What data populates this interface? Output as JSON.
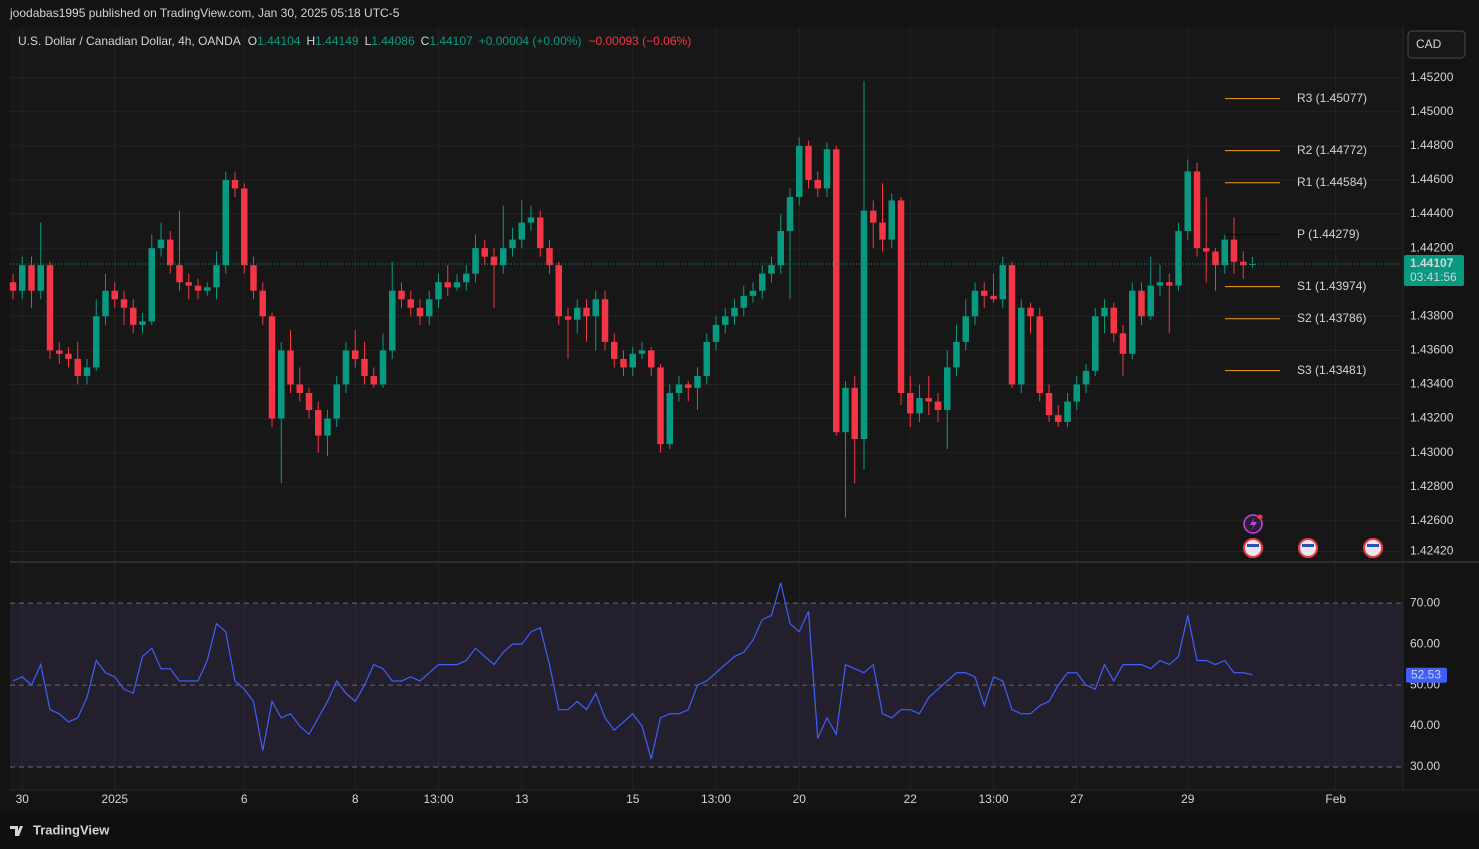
{
  "header": {
    "published": "joodabas1995 published on TradingView.com, Jan 30, 2025 05:18 UTC-5"
  },
  "footer": {
    "logo": "TradingView"
  },
  "chart_data": [
    {
      "type": "candlestick",
      "title": "U.S. Dollar / Canadian Dollar, 4h, OANDA",
      "ohlc_letters": [
        "O",
        "H",
        "L",
        "C"
      ],
      "change": "+0.00004 (+0.00%)",
      "change_day": "−0.00093 (−0.06%)",
      "currency": "CAD",
      "countdown": "03:41:56",
      "up_color": "#089981",
      "down_color": "#f23645",
      "grid": true,
      "last_price_line": true,
      "ylim": [
        1.4237,
        1.4548
      ],
      "yticks": [
        {
          "value": 1.452,
          "label": "1.45200"
        },
        {
          "value": 1.45,
          "label": "1.45000"
        },
        {
          "value": 1.448,
          "label": "1.44800"
        },
        {
          "value": 1.446,
          "label": "1.44600"
        },
        {
          "value": 1.444,
          "label": "1.44400"
        },
        {
          "value": 1.442,
          "label": "1.44200"
        },
        {
          "value": 1.438,
          "label": "1.43800"
        },
        {
          "value": 1.436,
          "label": "1.43600"
        },
        {
          "value": 1.434,
          "label": "1.43400"
        },
        {
          "value": 1.432,
          "label": "1.43200"
        },
        {
          "value": 1.43,
          "label": "1.43000"
        },
        {
          "value": 1.428,
          "label": "1.42800"
        },
        {
          "value": 1.426,
          "label": "1.42600"
        },
        {
          "value": 1.4242,
          "label": "1.42420"
        }
      ],
      "levels": [
        {
          "label": "R3 (1.45077)",
          "value": 1.45077,
          "color": "#f7a21b"
        },
        {
          "label": "R2 (1.44772)",
          "value": 1.44772,
          "color": "#f7a21b"
        },
        {
          "label": "R1 (1.44584)",
          "value": 1.44584,
          "color": "#f7a21b"
        },
        {
          "label": "P (1.44279)",
          "value": 1.44279,
          "color": "#0a0a0a"
        },
        {
          "label": "S1 (1.43974)",
          "value": 1.43974,
          "color": "#f7a21b"
        },
        {
          "label": "S2 (1.43786)",
          "value": 1.43786,
          "color": "#f7a21b"
        },
        {
          "label": "S3 (1.43481)",
          "value": 1.43481,
          "color": "#f7a21b"
        }
      ],
      "x": [
        null,
        "30",
        null,
        null,
        null,
        null,
        null,
        null,
        null,
        null,
        null,
        "2025",
        null,
        null,
        null,
        null,
        null,
        null,
        null,
        null,
        null,
        null,
        null,
        null,
        null,
        "6",
        null,
        null,
        null,
        null,
        null,
        null,
        null,
        null,
        null,
        null,
        null,
        "8",
        null,
        null,
        null,
        null,
        null,
        null,
        null,
        null,
        "13:00",
        null,
        null,
        null,
        null,
        null,
        null,
        null,
        null,
        "13",
        null,
        null,
        null,
        null,
        null,
        null,
        null,
        null,
        null,
        null,
        null,
        "15",
        null,
        null,
        null,
        null,
        null,
        null,
        null,
        null,
        "13:00",
        null,
        null,
        null,
        null,
        null,
        null,
        null,
        null,
        "20",
        null,
        null,
        null,
        null,
        null,
        null,
        null,
        null,
        null,
        null,
        null,
        "22",
        null,
        null,
        null,
        null,
        null,
        null,
        null,
        null,
        "13:00",
        null,
        null,
        null,
        null,
        null,
        null,
        null,
        null,
        "27",
        null,
        null,
        null,
        null,
        null,
        null,
        null,
        null,
        null,
        null,
        null,
        "29",
        null,
        null,
        null,
        null,
        null,
        null,
        null,
        null,
        null,
        null,
        null,
        null,
        null,
        null,
        null,
        "Feb"
      ],
      "ohlc": [
        [
          1.44,
          1.4405,
          1.439,
          1.4395
        ],
        [
          1.4395,
          1.4415,
          1.439,
          1.441
        ],
        [
          1.441,
          1.4415,
          1.4385,
          1.4395
        ],
        [
          1.4395,
          1.4435,
          1.439,
          1.441
        ],
        [
          1.441,
          1.4412,
          1.4355,
          1.436
        ],
        [
          1.436,
          1.4365,
          1.4352,
          1.4358
        ],
        [
          1.4358,
          1.4362,
          1.435,
          1.4355
        ],
        [
          1.4355,
          1.4365,
          1.434,
          1.4345
        ],
        [
          1.4345,
          1.4355,
          1.434,
          1.435
        ],
        [
          1.435,
          1.439,
          1.4348,
          1.438
        ],
        [
          1.438,
          1.4405,
          1.4375,
          1.4395
        ],
        [
          1.4395,
          1.44,
          1.4385,
          1.439
        ],
        [
          1.439,
          1.4395,
          1.4375,
          1.4385
        ],
        [
          1.4385,
          1.439,
          1.437,
          1.4375
        ],
        [
          1.4375,
          1.4382,
          1.437,
          1.4377
        ],
        [
          1.4377,
          1.4428,
          1.4375,
          1.442
        ],
        [
          1.442,
          1.4435,
          1.4415,
          1.4425
        ],
        [
          1.4425,
          1.443,
          1.4405,
          1.441
        ],
        [
          1.441,
          1.4442,
          1.4395,
          1.44
        ],
        [
          1.44,
          1.4405,
          1.439,
          1.4398
        ],
        [
          1.4398,
          1.4402,
          1.439,
          1.4395
        ],
        [
          1.4395,
          1.44,
          1.4392,
          1.4397
        ],
        [
          1.4397,
          1.4418,
          1.439,
          1.441
        ],
        [
          1.441,
          1.4465,
          1.4405,
          1.446
        ],
        [
          1.446,
          1.4465,
          1.445,
          1.4455
        ],
        [
          1.4455,
          1.4458,
          1.4405,
          1.441
        ],
        [
          1.441,
          1.4415,
          1.439,
          1.4395
        ],
        [
          1.4395,
          1.44,
          1.4375,
          1.438
        ],
        [
          1.438,
          1.4382,
          1.4315,
          1.432
        ],
        [
          1.432,
          1.4365,
          1.4282,
          1.436
        ],
        [
          1.436,
          1.4372,
          1.4335,
          1.434
        ],
        [
          1.434,
          1.435,
          1.433,
          1.4335
        ],
        [
          1.4335,
          1.4338,
          1.432,
          1.4325
        ],
        [
          1.4325,
          1.433,
          1.43,
          1.431
        ],
        [
          1.431,
          1.4325,
          1.4298,
          1.432
        ],
        [
          1.432,
          1.4345,
          1.4315,
          1.434
        ],
        [
          1.434,
          1.4365,
          1.4335,
          1.436
        ],
        [
          1.436,
          1.4372,
          1.435,
          1.4355
        ],
        [
          1.4355,
          1.4365,
          1.434,
          1.4345
        ],
        [
          1.4345,
          1.435,
          1.4338,
          1.434
        ],
        [
          1.434,
          1.437,
          1.4338,
          1.436
        ],
        [
          1.436,
          1.4412,
          1.4355,
          1.4395
        ],
        [
          1.4395,
          1.44,
          1.4385,
          1.439
        ],
        [
          1.439,
          1.4395,
          1.438,
          1.4385
        ],
        [
          1.4385,
          1.439,
          1.4375,
          1.438
        ],
        [
          1.438,
          1.4395,
          1.4375,
          1.439
        ],
        [
          1.439,
          1.4405,
          1.4385,
          1.44
        ],
        [
          1.44,
          1.441,
          1.4392,
          1.4397
        ],
        [
          1.4397,
          1.4405,
          1.4395,
          1.44
        ],
        [
          1.44,
          1.441,
          1.4395,
          1.4405
        ],
        [
          1.4405,
          1.4428,
          1.44,
          1.442
        ],
        [
          1.442,
          1.4425,
          1.441,
          1.4415
        ],
        [
          1.4415,
          1.442,
          1.4385,
          1.441
        ],
        [
          1.441,
          1.4445,
          1.4405,
          1.442
        ],
        [
          1.442,
          1.4432,
          1.4415,
          1.4425
        ],
        [
          1.4425,
          1.4448,
          1.442,
          1.4435
        ],
        [
          1.4435,
          1.4445,
          1.443,
          1.4438
        ],
        [
          1.4438,
          1.4442,
          1.4415,
          1.442
        ],
        [
          1.442,
          1.4425,
          1.4405,
          1.441
        ],
        [
          1.441,
          1.4412,
          1.4375,
          1.438
        ],
        [
          1.438,
          1.4385,
          1.4355,
          1.4378
        ],
        [
          1.4378,
          1.439,
          1.437,
          1.4385
        ],
        [
          1.4385,
          1.439,
          1.4365,
          1.438
        ],
        [
          1.438,
          1.4395,
          1.436,
          1.439
        ],
        [
          1.439,
          1.4395,
          1.436,
          1.4365
        ],
        [
          1.4365,
          1.437,
          1.435,
          1.4355
        ],
        [
          1.4355,
          1.436,
          1.4345,
          1.435
        ],
        [
          1.435,
          1.4362,
          1.4345,
          1.4358
        ],
        [
          1.4358,
          1.4365,
          1.4355,
          1.436
        ],
        [
          1.436,
          1.4362,
          1.4345,
          1.435
        ],
        [
          1.435,
          1.4352,
          1.43,
          1.4305
        ],
        [
          1.4305,
          1.434,
          1.4302,
          1.4335
        ],
        [
          1.4335,
          1.4345,
          1.433,
          1.434
        ],
        [
          1.434,
          1.4342,
          1.433,
          1.4338
        ],
        [
          1.4338,
          1.435,
          1.4325,
          1.4345
        ],
        [
          1.4345,
          1.437,
          1.434,
          1.4365
        ],
        [
          1.4365,
          1.438,
          1.436,
          1.4375
        ],
        [
          1.4375,
          1.4385,
          1.437,
          1.438
        ],
        [
          1.438,
          1.439,
          1.4375,
          1.4385
        ],
        [
          1.4385,
          1.4398,
          1.438,
          1.4392
        ],
        [
          1.4392,
          1.44,
          1.4388,
          1.4395
        ],
        [
          1.4395,
          1.441,
          1.439,
          1.4405
        ],
        [
          1.4405,
          1.4415,
          1.44,
          1.441
        ],
        [
          1.441,
          1.444,
          1.4405,
          1.443
        ],
        [
          1.443,
          1.4455,
          1.439,
          1.445
        ],
        [
          1.445,
          1.4485,
          1.4445,
          1.448
        ],
        [
          1.448,
          1.4483,
          1.4455,
          1.446
        ],
        [
          1.446,
          1.4465,
          1.445,
          1.4455
        ],
        [
          1.4455,
          1.4482,
          1.445,
          1.4478
        ],
        [
          1.4478,
          1.448,
          1.431,
          1.4312
        ],
        [
          1.4312,
          1.4342,
          1.4262,
          1.4338
        ],
        [
          1.4338,
          1.4345,
          1.4282,
          1.4308
        ],
        [
          1.4308,
          1.4518,
          1.429,
          1.4442
        ],
        [
          1.4442,
          1.4448,
          1.442,
          1.4435
        ],
        [
          1.4435,
          1.4458,
          1.4418,
          1.4425
        ],
        [
          1.4425,
          1.4452,
          1.442,
          1.4448
        ],
        [
          1.4448,
          1.445,
          1.4328,
          1.4335
        ],
        [
          1.4335,
          1.4345,
          1.4315,
          1.4323
        ],
        [
          1.4323,
          1.434,
          1.4318,
          1.4332
        ],
        [
          1.4332,
          1.4345,
          1.4322,
          1.433
        ],
        [
          1.433,
          1.4335,
          1.4318,
          1.4325
        ],
        [
          1.4325,
          1.436,
          1.4302,
          1.435
        ],
        [
          1.435,
          1.4375,
          1.4345,
          1.4365
        ],
        [
          1.4365,
          1.439,
          1.436,
          1.438
        ],
        [
          1.438,
          1.44,
          1.4375,
          1.4395
        ],
        [
          1.4395,
          1.44,
          1.4385,
          1.4392
        ],
        [
          1.4392,
          1.4405,
          1.4388,
          1.439
        ],
        [
          1.439,
          1.4415,
          1.4385,
          1.441
        ],
        [
          1.441,
          1.4412,
          1.4338,
          1.434
        ],
        [
          1.434,
          1.439,
          1.4335,
          1.4385
        ],
        [
          1.4385,
          1.4388,
          1.437,
          1.438
        ],
        [
          1.438,
          1.4385,
          1.433,
          1.4335
        ],
        [
          1.4335,
          1.434,
          1.4318,
          1.4322
        ],
        [
          1.4322,
          1.4328,
          1.4315,
          1.4318
        ],
        [
          1.4318,
          1.4335,
          1.4315,
          1.433
        ],
        [
          1.433,
          1.4345,
          1.4325,
          1.434
        ],
        [
          1.434,
          1.4352,
          1.4335,
          1.4348
        ],
        [
          1.4348,
          1.4385,
          1.4345,
          1.438
        ],
        [
          1.438,
          1.439,
          1.437,
          1.4385
        ],
        [
          1.4385,
          1.4388,
          1.4365,
          1.437
        ],
        [
          1.437,
          1.4375,
          1.4345,
          1.4358
        ],
        [
          1.4358,
          1.44,
          1.4355,
          1.4395
        ],
        [
          1.4395,
          1.44,
          1.4375,
          1.438
        ],
        [
          1.438,
          1.4415,
          1.4378,
          1.4398
        ],
        [
          1.4398,
          1.441,
          1.4392,
          1.44
        ],
        [
          1.44,
          1.4405,
          1.437,
          1.4398
        ],
        [
          1.4398,
          1.4435,
          1.4395,
          1.443
        ],
        [
          1.443,
          1.4472,
          1.4425,
          1.4465
        ],
        [
          1.4465,
          1.447,
          1.4415,
          1.442
        ],
        [
          1.442,
          1.445,
          1.44,
          1.4418
        ],
        [
          1.4418,
          1.442,
          1.4395,
          1.441
        ],
        [
          1.441,
          1.4428,
          1.4405,
          1.4425
        ],
        [
          1.4425,
          1.4438,
          1.4405,
          1.4412
        ],
        [
          1.4412,
          1.4418,
          1.4402,
          1.441
        ],
        [
          1.44104,
          1.44149,
          1.44086,
          1.44107
        ],
        null,
        null,
        null,
        null,
        null,
        null,
        null,
        null,
        null
      ]
    },
    {
      "type": "line",
      "color": "#3f5ffb",
      "band": [
        30,
        70
      ],
      "band_color": "rgba(126,87,194,0.12)",
      "midline": 50,
      "ylim": [
        24.4,
        79.3
      ],
      "yticks": [
        {
          "value": 70,
          "label": "70.00"
        },
        {
          "value": 60,
          "label": "60.00"
        },
        {
          "value": 50,
          "label": "50.00"
        },
        {
          "value": 40,
          "label": "40.00"
        },
        {
          "value": 30,
          "label": "30.00"
        }
      ],
      "values": [
        51,
        52,
        50,
        55,
        44,
        43,
        41,
        42,
        47,
        56,
        53,
        52,
        49,
        48,
        57,
        59,
        54,
        54,
        51,
        51,
        51,
        56,
        65,
        63,
        51,
        49,
        46,
        34,
        46,
        42,
        43,
        40,
        38,
        42,
        46,
        51,
        48,
        46,
        50,
        55,
        54,
        51,
        51,
        52,
        51,
        53,
        55,
        55,
        55,
        56,
        59,
        57,
        55,
        58,
        60,
        60,
        63,
        64,
        55,
        44,
        44,
        46,
        44,
        48,
        42,
        39,
        41,
        43,
        40,
        32,
        42,
        43,
        43,
        44,
        50,
        51,
        53,
        55,
        57,
        58,
        61,
        66,
        67,
        75,
        65,
        63,
        68,
        37,
        42,
        38,
        55,
        54,
        53,
        55,
        43,
        42,
        44,
        44,
        43,
        47,
        49,
        51,
        53,
        53,
        52,
        45,
        52,
        51,
        44,
        43,
        43,
        45,
        46,
        50,
        53,
        53,
        50,
        49,
        55,
        51,
        55,
        55,
        55,
        54,
        56,
        55,
        57,
        67,
        56,
        56,
        55,
        56,
        53,
        53,
        52.53,
        null,
        null,
        null,
        null,
        null,
        null,
        null,
        null,
        null
      ]
    }
  ]
}
